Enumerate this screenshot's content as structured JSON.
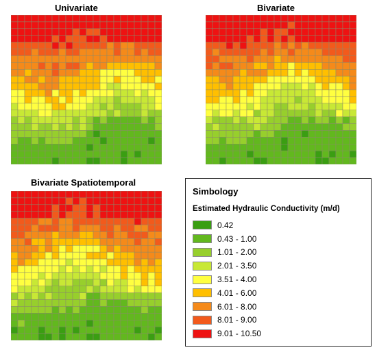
{
  "maps": [
    {
      "title": "Univariate",
      "seed": 11
    },
    {
      "title": "Bivariate",
      "seed": 23
    },
    {
      "title": "Bivariate Spatiotemporal",
      "seed": 37
    }
  ],
  "legend": {
    "title": "Simbology",
    "subtitle": "Estimated Hydraulic Conductivity (m/d)",
    "classes": [
      {
        "label": "0.42",
        "color": "#3a9e12"
      },
      {
        "label": "0.43 - 1.00",
        "color": "#62b81e"
      },
      {
        "label": "1.01 - 2.00",
        "color": "#97cf2c"
      },
      {
        "label": "2.01 - 3.50",
        "color": "#c8e835"
      },
      {
        "label": "3.51 - 4.00",
        "color": "#ffff40"
      },
      {
        "label": "4.01 - 6.00",
        "color": "#ffbf00"
      },
      {
        "label": "6.01 - 8.00",
        "color": "#f58a1a"
      },
      {
        "label": "8.01 - 9.00",
        "color": "#f25a1c"
      },
      {
        "label": "9.01 - 10.50",
        "color": "#ee1212"
      }
    ]
  }
}
